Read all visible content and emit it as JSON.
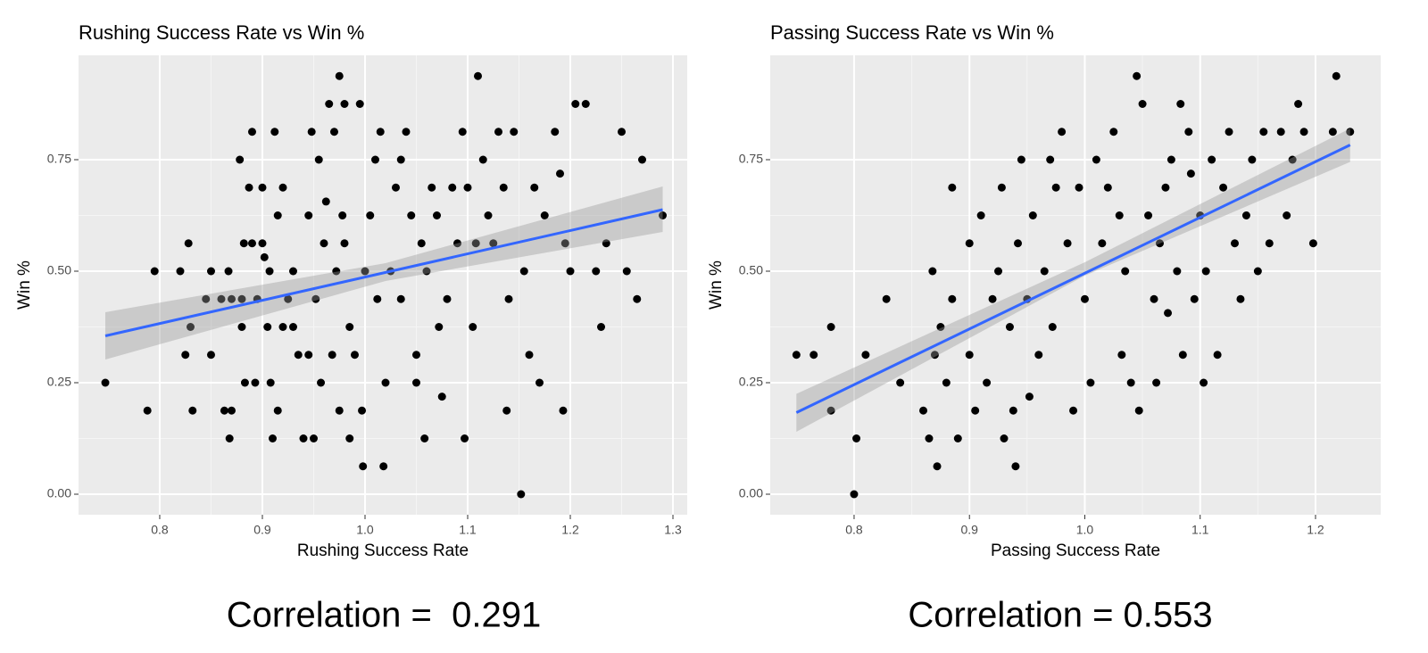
{
  "chart_data": [
    {
      "type": "scatter",
      "title": "Rushing Success Rate vs Win %",
      "x_label": "Rushing Success Rate",
      "y_label": "Win %",
      "annotation": "Correlation =  0.291",
      "color": "#000000",
      "grid": true,
      "xlim": [
        0.7209,
        1.3139
      ],
      "ylim": [
        -0.046,
        0.984
      ],
      "xticks": [
        0.8,
        0.9,
        {
          "value": 1,
          "label": "1.0"
        },
        1.1,
        1.2,
        1.3
      ],
      "yticks": [
        {
          "value": 0,
          "label": "0.00"
        },
        {
          "value": 0.25,
          "label": "0.25"
        },
        {
          "value": 0.5,
          "label": "0.50"
        },
        {
          "value": 0.75,
          "label": "0.75"
        }
      ],
      "x": [
        0.747,
        0.788,
        0.795,
        0.82,
        0.825,
        0.828,
        0.83,
        0.832,
        0.845,
        0.85,
        0.85,
        0.86,
        0.863,
        0.867,
        0.868,
        0.87,
        0.87,
        0.878,
        0.88,
        0.88,
        0.882,
        0.883,
        0.887,
        0.89,
        0.89,
        0.893,
        0.895,
        0.9,
        0.9,
        0.902,
        0.905,
        0.907,
        0.908,
        0.91,
        0.912,
        0.915,
        0.915,
        0.92,
        0.92,
        0.925,
        0.93,
        0.93,
        0.935,
        0.94,
        0.945,
        0.945,
        0.948,
        0.95,
        0.952,
        0.955,
        0.957,
        0.96,
        0.962,
        0.965,
        0.968,
        0.97,
        0.972,
        0.975,
        0.975,
        0.978,
        0.98,
        0.98,
        0.985,
        0.985,
        0.99,
        0.995,
        0.997,
        0.998,
        1.0,
        1.005,
        1.01,
        1.012,
        1.015,
        1.018,
        1.02,
        1.025,
        1.03,
        1.035,
        1.035,
        1.04,
        1.045,
        1.05,
        1.05,
        1.055,
        1.058,
        1.06,
        1.065,
        1.07,
        1.072,
        1.075,
        1.08,
        1.085,
        1.09,
        1.095,
        1.097,
        1.1,
        1.105,
        1.108,
        1.11,
        1.115,
        1.12,
        1.125,
        1.13,
        1.135,
        1.138,
        1.14,
        1.145,
        1.152,
        1.155,
        1.16,
        1.165,
        1.17,
        1.175,
        1.185,
        1.19,
        1.193,
        1.195,
        1.2,
        1.205,
        1.215,
        1.225,
        1.23,
        1.235,
        1.25,
        1.255,
        1.265,
        1.27,
        1.29
      ],
      "y": [
        0.25,
        0.1875,
        0.5,
        0.5,
        0.3125,
        0.5625,
        0.375,
        0.1875,
        0.4375,
        0.5,
        0.3125,
        0.4375,
        0.1875,
        0.5,
        0.125,
        0.1875,
        0.4375,
        0.75,
        0.4375,
        0.375,
        0.5625,
        0.25,
        0.6875,
        0.8125,
        0.5625,
        0.25,
        0.4375,
        0.6875,
        0.5625,
        0.53125,
        0.375,
        0.5,
        0.25,
        0.125,
        0.8125,
        0.625,
        0.1875,
        0.375,
        0.6875,
        0.4375,
        0.5,
        0.375,
        0.3125,
        0.125,
        0.3125,
        0.625,
        0.8125,
        0.125,
        0.4375,
        0.75,
        0.25,
        0.5625,
        0.6562,
        0.875,
        0.3125,
        0.8125,
        0.5,
        0.9375,
        0.1875,
        0.625,
        0.875,
        0.5625,
        0.375,
        0.125,
        0.3125,
        0.875,
        0.1875,
        0.0625,
        0.5,
        0.625,
        0.75,
        0.4375,
        0.8125,
        0.0625,
        0.25,
        0.5,
        0.6875,
        0.75,
        0.4375,
        0.8125,
        0.625,
        0.25,
        0.3125,
        0.5625,
        0.125,
        0.5,
        0.6875,
        0.625,
        0.375,
        0.21875,
        0.4375,
        0.6875,
        0.5625,
        0.8125,
        0.125,
        0.6875,
        0.375,
        0.5625,
        0.9375,
        0.75,
        0.625,
        0.5625,
        0.8125,
        0.6875,
        0.1875,
        0.4375,
        0.8125,
        0,
        0.5,
        0.3125,
        0.6875,
        0.25,
        0.625,
        0.8125,
        0.71875,
        0.1875,
        0.5625,
        0.5,
        0.875,
        0.875,
        0.5,
        0.375,
        0.5625,
        0.8125,
        0.5,
        0.4375,
        0.75,
        0.625
      ],
      "trend": {
        "color": "#3366ff",
        "x": [
          0.747,
          1.29
        ],
        "y": [
          0.355,
          0.638
        ]
      },
      "band": {
        "color": "#999999",
        "x": [
          0.747,
          1.02,
          1.29
        ],
        "lower": [
          0.302,
          0.478,
          0.588
        ],
        "upper": [
          0.408,
          0.518,
          0.69
        ]
      }
    },
    {
      "type": "scatter",
      "title": "Passing Success Rate vs Win %",
      "x_label": "Passing Success Rate",
      "y_label": "Win %",
      "annotation": "Correlation = 0.553",
      "color": "#000000",
      "grid": true,
      "xlim": [
        0.7273,
        1.2565
      ],
      "ylim": [
        -0.046,
        0.984
      ],
      "xticks": [
        0.8,
        0.9,
        {
          "value": 1,
          "label": "1.0"
        },
        1.1,
        1.2
      ],
      "yticks": [
        {
          "value": 0,
          "label": "0.00"
        },
        {
          "value": 0.25,
          "label": "0.25"
        },
        {
          "value": 0.5,
          "label": "0.50"
        },
        {
          "value": 0.75,
          "label": "0.75"
        }
      ],
      "x": [
        0.75,
        0.765,
        0.78,
        0.78,
        0.8,
        0.802,
        0.81,
        0.828,
        0.84,
        0.86,
        0.865,
        0.868,
        0.87,
        0.872,
        0.875,
        0.88,
        0.885,
        0.885,
        0.89,
        0.9,
        0.9,
        0.905,
        0.91,
        0.915,
        0.92,
        0.925,
        0.928,
        0.93,
        0.935,
        0.938,
        0.94,
        0.942,
        0.945,
        0.95,
        0.952,
        0.955,
        0.96,
        0.965,
        0.97,
        0.972,
        0.975,
        0.98,
        0.985,
        0.99,
        0.995,
        1.0,
        1.005,
        1.01,
        1.015,
        1.02,
        1.025,
        1.03,
        1.032,
        1.035,
        1.04,
        1.045,
        1.047,
        1.05,
        1.055,
        1.06,
        1.062,
        1.065,
        1.07,
        1.072,
        1.075,
        1.08,
        1.083,
        1.085,
        1.09,
        1.092,
        1.095,
        1.1,
        1.103,
        1.105,
        1.11,
        1.115,
        1.12,
        1.125,
        1.13,
        1.135,
        1.14,
        1.145,
        1.15,
        1.155,
        1.16,
        1.17,
        1.175,
        1.18,
        1.185,
        1.19,
        1.198,
        1.215,
        1.218,
        1.23
      ],
      "y": [
        0.3125,
        0.3125,
        0.375,
        0.1875,
        0,
        0.125,
        0.3125,
        0.4375,
        0.25,
        0.1875,
        0.125,
        0.5,
        0.3125,
        0.0625,
        0.375,
        0.25,
        0.6875,
        0.4375,
        0.125,
        0.3125,
        0.5625,
        0.1875,
        0.625,
        0.25,
        0.4375,
        0.5,
        0.6875,
        0.125,
        0.375,
        0.1875,
        0.0625,
        0.5625,
        0.75,
        0.4375,
        0.21875,
        0.625,
        0.3125,
        0.5,
        0.75,
        0.375,
        0.6875,
        0.8125,
        0.5625,
        0.1875,
        0.6875,
        0.4375,
        0.25,
        0.75,
        0.5625,
        0.6875,
        0.8125,
        0.625,
        0.3125,
        0.5,
        0.25,
        0.9375,
        0.1875,
        0.875,
        0.625,
        0.4375,
        0.25,
        0.5625,
        0.6875,
        0.40625,
        0.75,
        0.5,
        0.875,
        0.3125,
        0.8125,
        0.71875,
        0.4375,
        0.625,
        0.25,
        0.5,
        0.75,
        0.3125,
        0.6875,
        0.8125,
        0.5625,
        0.4375,
        0.625,
        0.75,
        0.5,
        0.8125,
        0.5625,
        0.8125,
        0.625,
        0.75,
        0.875,
        0.8125,
        0.5625,
        0.8125,
        0.9375,
        0.8125
      ],
      "trend": {
        "color": "#3366ff",
        "x": [
          0.75,
          1.23
        ],
        "y": [
          0.183,
          0.783
        ]
      },
      "band": {
        "color": "#999999",
        "x": [
          0.75,
          1.0,
          1.23
        ],
        "lower": [
          0.14,
          0.49,
          0.745
        ],
        "upper": [
          0.225,
          0.52,
          0.82
        ]
      }
    }
  ]
}
